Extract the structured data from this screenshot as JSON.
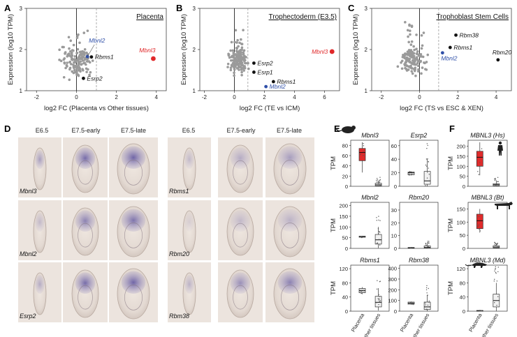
{
  "figure": {
    "panels": {
      "A": "A",
      "B": "B",
      "C": "C",
      "D": "D",
      "E": "E",
      "F": "F"
    },
    "colors": {
      "highlight_red": "#e0282a",
      "highlight_blue": "#2f4fa8",
      "grey_point": "#9a9a9a",
      "box_red": "#e02b2b",
      "box_grey": "#d6d6d6",
      "embryo_stain": "#5b4ea0"
    }
  },
  "chart_data": [
    {
      "panel": "A",
      "type": "scatter",
      "title": "Placenta",
      "xlabel": "log2 FC (Placenta vs Other tissues)",
      "ylabel": "Expression (log10 TPM)",
      "xlim": [
        -2.5,
        4.5
      ],
      "ylim": [
        1,
        3
      ],
      "xticks": [
        "-2",
        "0",
        "2",
        "4"
      ],
      "yticks": [
        "1",
        "2",
        "3"
      ],
      "cutoff_x": 1,
      "highlighted": [
        {
          "label": "Mbnl3",
          "x": 3.85,
          "y": 1.78,
          "color": "#e0282a"
        },
        {
          "label": "Mbnl2",
          "x": 0.55,
          "y": 1.83,
          "color": "#2f4fa8"
        },
        {
          "label": "Rbms1",
          "x": 0.75,
          "y": 1.82,
          "color": "#111111"
        },
        {
          "label": "Esrp2",
          "x": 0.35,
          "y": 1.3,
          "color": "#111111"
        }
      ]
    },
    {
      "panel": "B",
      "type": "scatter",
      "title": "Trophectoderm (E3.5)",
      "xlabel": "log2 FC (TE vs ICM)",
      "ylabel": "Expression (log10 TPM)",
      "xlim": [
        -2.3,
        7
      ],
      "ylim": [
        1,
        3
      ],
      "xticks": [
        "-2",
        "0",
        "2",
        "4",
        "6"
      ],
      "yticks": [
        "1",
        "2",
        "3"
      ],
      "cutoff_x": 0.9,
      "highlighted": [
        {
          "label": "Mbnl3",
          "x": 6.5,
          "y": 1.95,
          "color": "#e0282a"
        },
        {
          "label": "Esrp2",
          "x": 1.3,
          "y": 1.67,
          "color": "#111111"
        },
        {
          "label": "Esrp1",
          "x": 1.3,
          "y": 1.45,
          "color": "#111111"
        },
        {
          "label": "Rbms1",
          "x": 2.6,
          "y": 1.22,
          "color": "#111111"
        },
        {
          "label": "Mbnl2",
          "x": 2.1,
          "y": 1.1,
          "color": "#2f4fa8"
        }
      ]
    },
    {
      "panel": "C",
      "type": "scatter",
      "title": "Trophoblast Stem Cells",
      "xlabel": "log2 FC (TS vs ESC & XEN)",
      "ylabel": "Expression (log10 TPM)",
      "xlim": [
        -2.5,
        4.8
      ],
      "ylim": [
        1,
        3
      ],
      "xticks": [
        "-2",
        "0",
        "2",
        "4"
      ],
      "yticks": [
        "1",
        "2",
        "3"
      ],
      "cutoff_x": 1,
      "highlighted": [
        {
          "label": "Rbm38",
          "x": 1.9,
          "y": 2.35,
          "color": "#111111"
        },
        {
          "label": "Rbms1",
          "x": 1.6,
          "y": 2.05,
          "color": "#111111"
        },
        {
          "label": "Mbnl2",
          "x": 1.2,
          "y": 1.92,
          "color": "#2f4fa8"
        },
        {
          "label": "Rbm20",
          "x": 4.1,
          "y": 1.75,
          "color": "#111111"
        }
      ]
    },
    {
      "panel": "E",
      "type": "box",
      "ylabel": "TPM",
      "categories": [
        "Placenta",
        "Other tissues"
      ],
      "plots": [
        {
          "gene": "Mbnl3",
          "yticks": [
            "0",
            "20",
            "40",
            "60",
            "80"
          ],
          "ylim": [
            0,
            90
          ],
          "placenta": {
            "q1": 50,
            "median": 66,
            "q3": 74,
            "lo": 27,
            "hi": 86
          },
          "other": {
            "q1": 1,
            "median": 3,
            "q3": 6,
            "lo": 0,
            "hi": 11
          }
        },
        {
          "gene": "Esrp2",
          "yticks": [
            "0",
            "20",
            "40",
            "60"
          ],
          "ylim": [
            0,
            68
          ],
          "placenta": {
            "q1": 17,
            "median": 20,
            "q3": 21,
            "lo": 16,
            "hi": 22
          },
          "other": {
            "q1": 3,
            "median": 8,
            "q3": 22,
            "lo": 0,
            "hi": 40
          }
        },
        {
          "gene": "Mbnl2",
          "yticks": [
            "0",
            "50",
            "100",
            "150",
            "200"
          ],
          "ylim": [
            0,
            215
          ],
          "placenta": {
            "q1": 52,
            "median": 55,
            "q3": 57,
            "lo": 50,
            "hi": 58
          },
          "other": {
            "q1": 20,
            "median": 40,
            "q3": 65,
            "lo": 2,
            "hi": 100
          }
        },
        {
          "gene": "Rbm20",
          "yticks": [
            "0",
            "10",
            "20",
            "30"
          ],
          "ylim": [
            0,
            36
          ],
          "placenta": {
            "q1": 0.3,
            "median": 0.5,
            "q3": 0.7,
            "lo": 0.2,
            "hi": 0.8
          },
          "other": {
            "q1": 0.2,
            "median": 0.8,
            "q3": 2,
            "lo": 0,
            "hi": 4
          }
        },
        {
          "gene": "Rbms1",
          "yticks": [
            "0",
            "40",
            "80",
            "120"
          ],
          "ylim": [
            0,
            130
          ],
          "placenta": {
            "q1": 52,
            "median": 58,
            "q3": 64,
            "lo": 48,
            "hi": 68
          },
          "other": {
            "q1": 12,
            "median": 25,
            "q3": 42,
            "lo": 2,
            "hi": 65
          }
        },
        {
          "gene": "Rbm38",
          "yticks": [
            "0",
            "100",
            "200",
            "300",
            "400"
          ],
          "ylim": [
            0,
            430
          ],
          "placenta": {
            "q1": 65,
            "median": 75,
            "q3": 85,
            "lo": 60,
            "hi": 90
          },
          "other": {
            "q1": 15,
            "median": 40,
            "q3": 85,
            "lo": 0,
            "hi": 150
          }
        }
      ]
    },
    {
      "panel": "F",
      "type": "box",
      "ylabel": "TPM",
      "categories": [
        "Placenta",
        "Other tissues"
      ],
      "plots": [
        {
          "gene": "MBNL3 (Hs)",
          "yticks": [
            "0",
            "50",
            "100",
            "150",
            "200"
          ],
          "ylim": [
            0,
            230
          ],
          "placenta": {
            "q1": 100,
            "median": 145,
            "q3": 175,
            "lo": 55,
            "hi": 220
          },
          "other": {
            "q1": 3,
            "median": 8,
            "q3": 13,
            "lo": 0,
            "hi": 30
          }
        },
        {
          "gene": "MBNL3 (Bt)",
          "yticks": [
            "0",
            "50",
            "100",
            "150"
          ],
          "ylim": [
            0,
            175
          ],
          "placenta": {
            "q1": 75,
            "median": 105,
            "q3": 130,
            "lo": 60,
            "hi": 150
          },
          "other": {
            "q1": 2,
            "median": 5,
            "q3": 10,
            "lo": 0,
            "hi": 15
          }
        },
        {
          "gene": "MBNL3 (Md)",
          "yticks": [
            "0",
            "40",
            "80",
            "120"
          ],
          "ylim": [
            0,
            130
          ],
          "placenta": {
            "q1": 1,
            "median": 1.5,
            "q3": 2,
            "lo": 0.5,
            "hi": 2.5
          },
          "other": {
            "q1": 12,
            "median": 30,
            "q3": 48,
            "lo": 0,
            "hi": 80
          }
        }
      ]
    }
  ],
  "panel_D": {
    "stages": [
      "E6.5",
      "E7.5-early",
      "E7.5-late"
    ],
    "left_genes": [
      "Mbnl3",
      "Mbnl2",
      "Esrp2"
    ],
    "right_genes": [
      "Rbms1",
      "Rbm20",
      "Rbm38"
    ]
  }
}
